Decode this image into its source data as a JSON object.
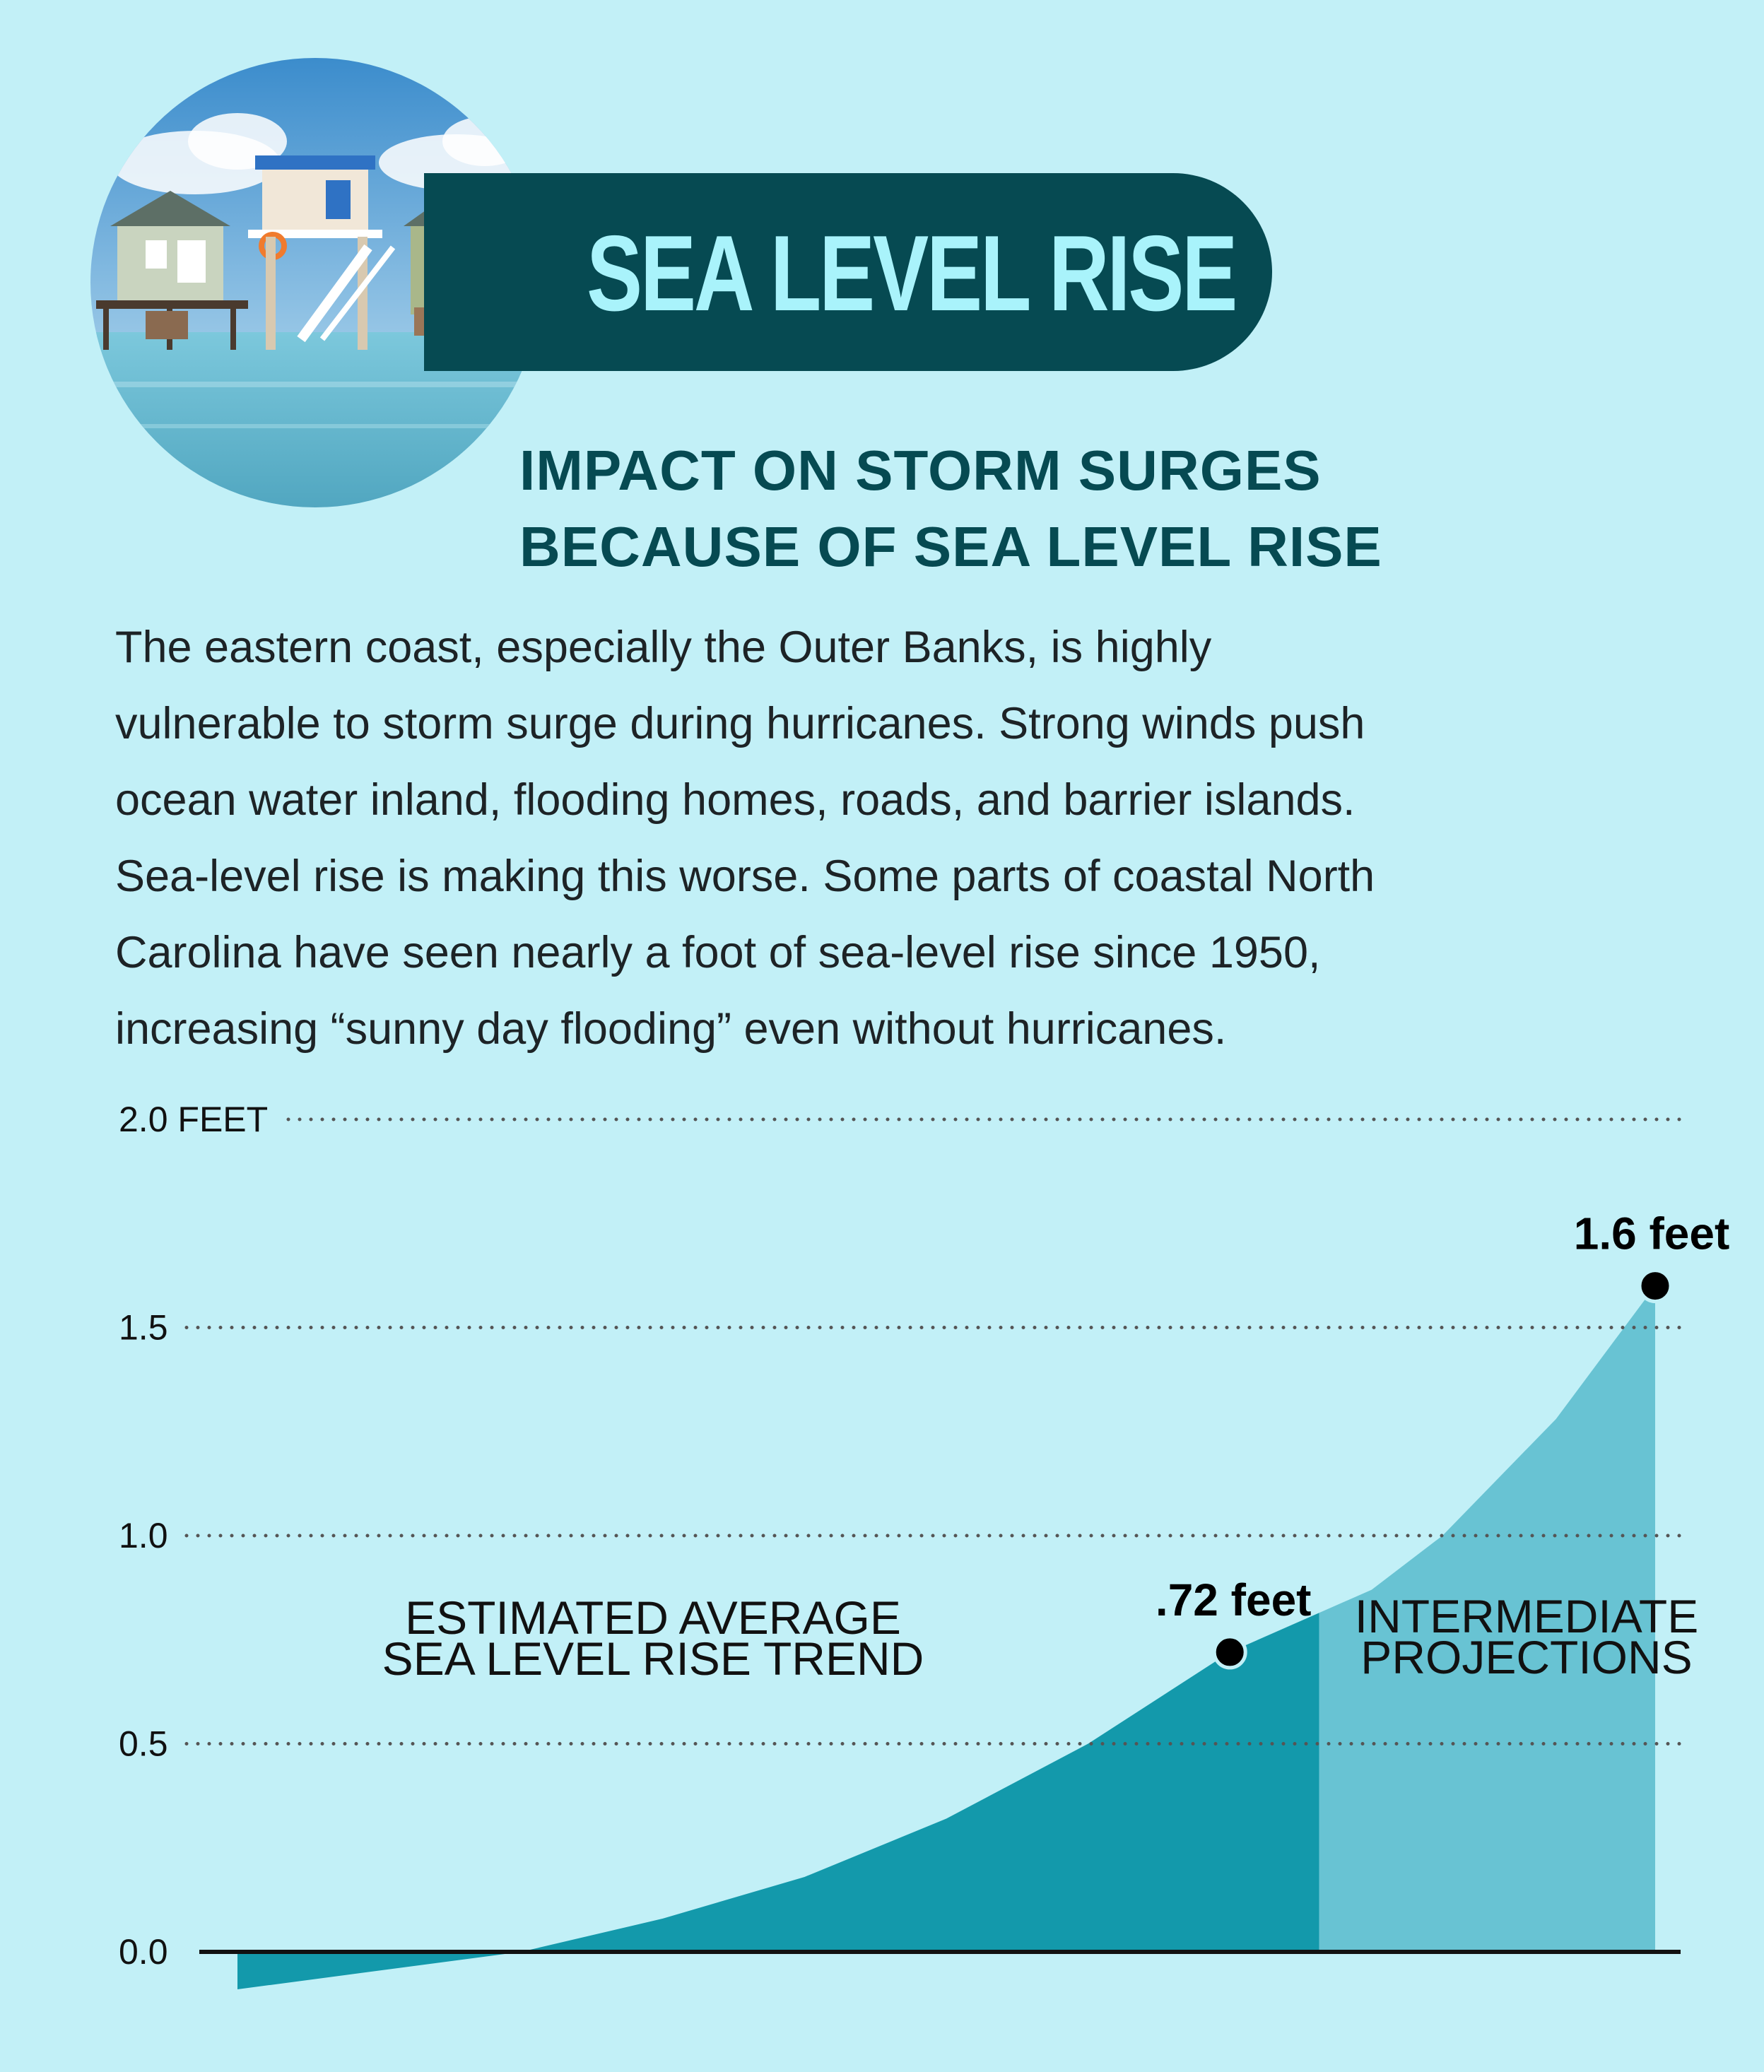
{
  "header": {
    "title": "SEA LEVEL RISE",
    "subtitle_lines": [
      "IMPACT ON STORM SURGES",
      "BECAUSE OF SEA LEVEL RISE"
    ]
  },
  "body": {
    "lines": [
      "The eastern coast, especially the Outer Banks, is highly",
      "vulnerable to storm surge during hurricanes. Strong winds push",
      "ocean water inland, flooding homes, roads, and barrier islands.",
      "Sea-level rise is making this worse. Some parts of coastal North",
      "Carolina have seen nearly a foot of sea-level rise since 1950,",
      "increasing “sunny day flooding” even without hurricanes."
    ]
  },
  "colors": {
    "background": "#c2f0f7",
    "title_pill": "#064a52",
    "title_text": "#a9f3fb",
    "trend_area": "#1399ab",
    "projection_area": "#68c3d3"
  },
  "chart_data": {
    "type": "area",
    "ylim": [
      0,
      2.0
    ],
    "y_ticks": [
      {
        "value": 2.0,
        "label": "2.0 FEET"
      },
      {
        "value": 1.5,
        "label": "1.5"
      },
      {
        "value": 1.0,
        "label": "1.0"
      },
      {
        "value": 0.5,
        "label": "0.5"
      },
      {
        "value": 0.0,
        "label": "0.0"
      }
    ],
    "grid": "dotted horizontal",
    "x": [
      0,
      0.2,
      0.3,
      0.4,
      0.5,
      0.6,
      0.7,
      0.8,
      0.85,
      0.93,
      1.0
    ],
    "series": [
      {
        "name": "ESTIMATED AVERAGE SEA LEVEL RISE TREND",
        "x_range": [
          0,
          0.763
        ]
      },
      {
        "name": "INTERMEDIATE PROJECTIONS",
        "x_range": [
          0.763,
          1.0
        ]
      }
    ],
    "values": [
      -0.09,
      0.0,
      0.08,
      0.18,
      0.32,
      0.5,
      0.72,
      0.87,
      1.0,
      1.28,
      1.6
    ],
    "region_labels": [
      {
        "lines": [
          "ESTIMATED AVERAGE",
          "SEA LEVEL RISE TREND"
        ]
      },
      {
        "lines": [
          "INTERMEDIATE",
          "PROJECTIONS"
        ]
      }
    ],
    "annotations": [
      {
        "x": 0.7,
        "y": 0.72,
        "label": ".72 feet"
      },
      {
        "x": 1.0,
        "y": 1.6,
        "label": "1.6 feet"
      }
    ]
  }
}
